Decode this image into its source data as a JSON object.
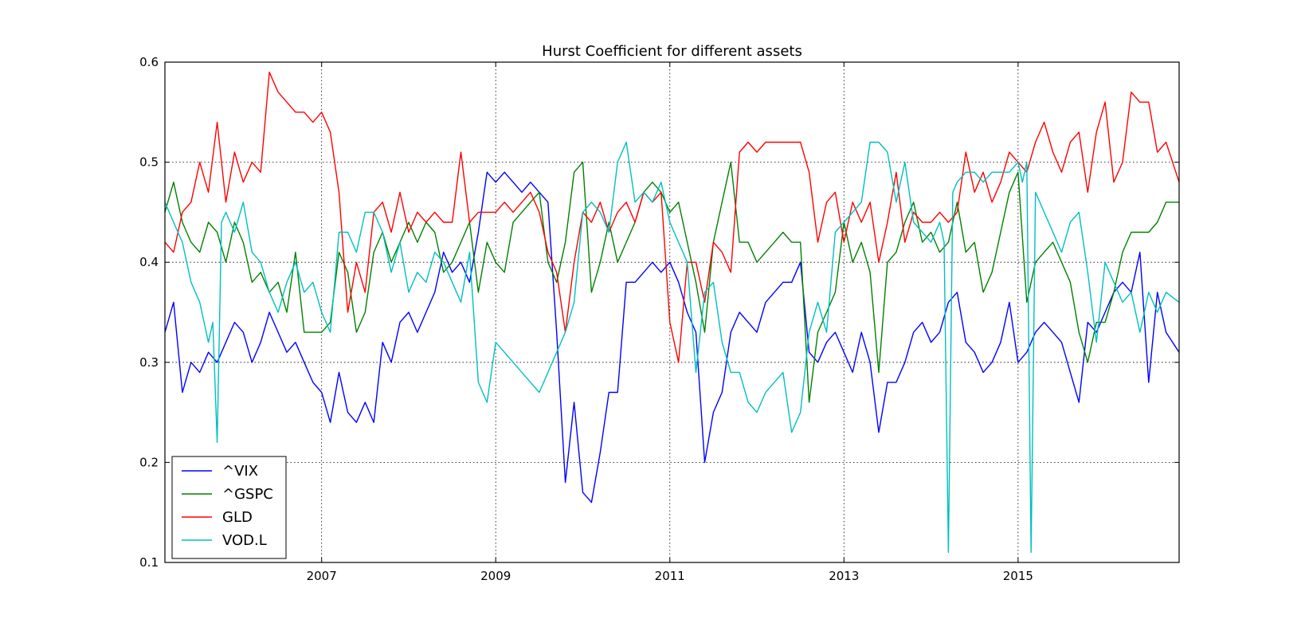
{
  "chart_data": {
    "type": "line",
    "title": "Hurst Coefficient for different assets",
    "xlabel": "",
    "ylabel": "",
    "xlim": [
      2005.2,
      2016.85
    ],
    "ylim": [
      0.1,
      0.6
    ],
    "x_ticks": [
      2007,
      2009,
      2011,
      2013,
      2015
    ],
    "x_tick_labels": [
      "2007",
      "2009",
      "2011",
      "2013",
      "2015"
    ],
    "y_ticks": [
      0.1,
      0.2,
      0.3,
      0.4,
      0.5,
      0.6
    ],
    "y_tick_labels": [
      "0.1",
      "0.2",
      "0.3",
      "0.4",
      "0.5",
      "0.6"
    ],
    "grid": true,
    "legend_position": "lower-left",
    "series": [
      {
        "name": "^VIX",
        "color": "#0000ff",
        "x": [
          2005.2,
          2005.3,
          2005.4,
          2005.5,
          2005.6,
          2005.7,
          2005.8,
          2005.9,
          2006.0,
          2006.1,
          2006.2,
          2006.3,
          2006.4,
          2006.5,
          2006.6,
          2006.7,
          2006.8,
          2006.9,
          2007.0,
          2007.1,
          2007.2,
          2007.3,
          2007.4,
          2007.5,
          2007.6,
          2007.7,
          2007.8,
          2007.9,
          2008.0,
          2008.1,
          2008.2,
          2008.3,
          2008.4,
          2008.5,
          2008.6,
          2008.7,
          2008.8,
          2008.9,
          2009.0,
          2009.1,
          2009.2,
          2009.3,
          2009.4,
          2009.5,
          2009.6,
          2009.7,
          2009.8,
          2009.9,
          2010.0,
          2010.1,
          2010.2,
          2010.3,
          2010.4,
          2010.5,
          2010.6,
          2010.7,
          2010.8,
          2010.9,
          2011.0,
          2011.1,
          2011.2,
          2011.3,
          2011.4,
          2011.5,
          2011.6,
          2011.7,
          2011.8,
          2011.9,
          2012.0,
          2012.1,
          2012.2,
          2012.3,
          2012.4,
          2012.5,
          2012.6,
          2012.7,
          2012.8,
          2012.9,
          2013.0,
          2013.1,
          2013.2,
          2013.3,
          2013.4,
          2013.5,
          2013.6,
          2013.7,
          2013.8,
          2013.9,
          2014.0,
          2014.1,
          2014.2,
          2014.3,
          2014.4,
          2014.5,
          2014.6,
          2014.7,
          2014.8,
          2014.9,
          2015.0,
          2015.1,
          2015.2,
          2015.3,
          2015.4,
          2015.5,
          2015.6,
          2015.7,
          2015.8,
          2015.9,
          2016.0,
          2016.1,
          2016.2,
          2016.3,
          2016.4,
          2016.5,
          2016.6,
          2016.7,
          2016.85
        ],
        "y": [
          0.33,
          0.36,
          0.27,
          0.3,
          0.29,
          0.31,
          0.3,
          0.32,
          0.34,
          0.33,
          0.3,
          0.32,
          0.35,
          0.33,
          0.31,
          0.32,
          0.3,
          0.28,
          0.27,
          0.24,
          0.29,
          0.25,
          0.24,
          0.26,
          0.24,
          0.32,
          0.3,
          0.34,
          0.35,
          0.33,
          0.35,
          0.37,
          0.41,
          0.39,
          0.4,
          0.38,
          0.43,
          0.49,
          0.48,
          0.49,
          0.48,
          0.47,
          0.48,
          0.47,
          0.46,
          0.33,
          0.18,
          0.26,
          0.17,
          0.16,
          0.21,
          0.27,
          0.27,
          0.38,
          0.38,
          0.39,
          0.4,
          0.39,
          0.4,
          0.38,
          0.35,
          0.33,
          0.2,
          0.25,
          0.27,
          0.33,
          0.35,
          0.34,
          0.33,
          0.36,
          0.37,
          0.38,
          0.38,
          0.4,
          0.31,
          0.3,
          0.32,
          0.33,
          0.31,
          0.29,
          0.33,
          0.3,
          0.23,
          0.28,
          0.28,
          0.3,
          0.33,
          0.34,
          0.32,
          0.33,
          0.36,
          0.37,
          0.32,
          0.31,
          0.29,
          0.3,
          0.32,
          0.36,
          0.3,
          0.31,
          0.33,
          0.34,
          0.33,
          0.32,
          0.29,
          0.26,
          0.34,
          0.33,
          0.35,
          0.37,
          0.38,
          0.37,
          0.41,
          0.28,
          0.37,
          0.33,
          0.31
        ]
      },
      {
        "name": "^GSPC",
        "color": "#008000",
        "x": [
          2005.2,
          2005.3,
          2005.4,
          2005.5,
          2005.6,
          2005.7,
          2005.8,
          2005.9,
          2006.0,
          2006.1,
          2006.2,
          2006.3,
          2006.4,
          2006.5,
          2006.6,
          2006.7,
          2006.8,
          2006.9,
          2007.0,
          2007.1,
          2007.2,
          2007.3,
          2007.4,
          2007.5,
          2007.6,
          2007.7,
          2007.8,
          2007.9,
          2008.0,
          2008.1,
          2008.2,
          2008.3,
          2008.4,
          2008.5,
          2008.6,
          2008.7,
          2008.8,
          2008.9,
          2009.0,
          2009.1,
          2009.2,
          2009.3,
          2009.4,
          2009.5,
          2009.6,
          2009.7,
          2009.8,
          2009.9,
          2010.0,
          2010.1,
          2010.2,
          2010.3,
          2010.4,
          2010.5,
          2010.6,
          2010.7,
          2010.8,
          2010.9,
          2011.0,
          2011.1,
          2011.2,
          2011.3,
          2011.4,
          2011.5,
          2011.6,
          2011.7,
          2011.8,
          2011.9,
          2012.0,
          2012.1,
          2012.2,
          2012.3,
          2012.4,
          2012.5,
          2012.6,
          2012.7,
          2012.8,
          2012.9,
          2013.0,
          2013.1,
          2013.2,
          2013.3,
          2013.4,
          2013.5,
          2013.6,
          2013.7,
          2013.8,
          2013.9,
          2014.0,
          2014.1,
          2014.2,
          2014.3,
          2014.4,
          2014.5,
          2014.6,
          2014.7,
          2014.8,
          2014.9,
          2015.0,
          2015.1,
          2015.2,
          2015.3,
          2015.4,
          2015.5,
          2015.6,
          2015.7,
          2015.8,
          2015.9,
          2016.0,
          2016.1,
          2016.2,
          2016.3,
          2016.4,
          2016.5,
          2016.6,
          2016.7,
          2016.85
        ],
        "y": [
          0.45,
          0.48,
          0.44,
          0.42,
          0.41,
          0.44,
          0.43,
          0.4,
          0.44,
          0.42,
          0.38,
          0.39,
          0.37,
          0.38,
          0.35,
          0.41,
          0.33,
          0.33,
          0.33,
          0.34,
          0.41,
          0.39,
          0.33,
          0.35,
          0.41,
          0.43,
          0.4,
          0.42,
          0.44,
          0.42,
          0.44,
          0.43,
          0.39,
          0.4,
          0.42,
          0.44,
          0.37,
          0.42,
          0.4,
          0.39,
          0.44,
          0.45,
          0.46,
          0.47,
          0.4,
          0.38,
          0.42,
          0.49,
          0.5,
          0.37,
          0.4,
          0.44,
          0.4,
          0.42,
          0.44,
          0.47,
          0.48,
          0.47,
          0.45,
          0.46,
          0.42,
          0.38,
          0.33,
          0.42,
          0.46,
          0.5,
          0.42,
          0.42,
          0.4,
          0.41,
          0.42,
          0.43,
          0.42,
          0.42,
          0.26,
          0.33,
          0.35,
          0.37,
          0.44,
          0.4,
          0.42,
          0.39,
          0.29,
          0.4,
          0.41,
          0.44,
          0.46,
          0.42,
          0.43,
          0.41,
          0.42,
          0.46,
          0.41,
          0.42,
          0.37,
          0.39,
          0.43,
          0.47,
          0.49,
          0.36,
          0.4,
          0.41,
          0.42,
          0.4,
          0.38,
          0.33,
          0.3,
          0.34,
          0.34,
          0.37,
          0.41,
          0.43,
          0.43,
          0.43,
          0.44,
          0.46,
          0.46
        ]
      },
      {
        "name": "GLD",
        "color": "#ff0000",
        "x": [
          2005.2,
          2005.3,
          2005.4,
          2005.5,
          2005.6,
          2005.7,
          2005.8,
          2005.9,
          2006.0,
          2006.1,
          2006.2,
          2006.3,
          2006.4,
          2006.5,
          2006.6,
          2006.7,
          2006.8,
          2006.9,
          2007.0,
          2007.1,
          2007.2,
          2007.3,
          2007.4,
          2007.5,
          2007.6,
          2007.7,
          2007.8,
          2007.9,
          2008.0,
          2008.1,
          2008.2,
          2008.3,
          2008.4,
          2008.5,
          2008.6,
          2008.7,
          2008.8,
          2008.9,
          2009.0,
          2009.1,
          2009.2,
          2009.3,
          2009.4,
          2009.5,
          2009.6,
          2009.7,
          2009.8,
          2009.9,
          2010.0,
          2010.1,
          2010.2,
          2010.3,
          2010.4,
          2010.5,
          2010.6,
          2010.7,
          2010.8,
          2010.9,
          2011.0,
          2011.1,
          2011.2,
          2011.3,
          2011.4,
          2011.5,
          2011.6,
          2011.7,
          2011.8,
          2011.9,
          2012.0,
          2012.1,
          2012.2,
          2012.3,
          2012.4,
          2012.5,
          2012.6,
          2012.7,
          2012.8,
          2012.9,
          2013.0,
          2013.1,
          2013.2,
          2013.3,
          2013.4,
          2013.5,
          2013.6,
          2013.7,
          2013.8,
          2013.9,
          2014.0,
          2014.1,
          2014.2,
          2014.3,
          2014.4,
          2014.5,
          2014.6,
          2014.7,
          2014.8,
          2014.9,
          2015.0,
          2015.1,
          2015.2,
          2015.3,
          2015.4,
          2015.5,
          2015.6,
          2015.7,
          2015.8,
          2015.9,
          2016.0,
          2016.1,
          2016.2,
          2016.3,
          2016.4,
          2016.5,
          2016.6,
          2016.7,
          2016.85
        ],
        "y": [
          0.42,
          0.41,
          0.45,
          0.46,
          0.5,
          0.47,
          0.54,
          0.46,
          0.51,
          0.48,
          0.5,
          0.49,
          0.59,
          0.57,
          0.56,
          0.55,
          0.55,
          0.54,
          0.55,
          0.53,
          0.47,
          0.35,
          0.4,
          0.37,
          0.45,
          0.46,
          0.43,
          0.47,
          0.43,
          0.45,
          0.44,
          0.45,
          0.44,
          0.44,
          0.51,
          0.44,
          0.45,
          0.45,
          0.45,
          0.46,
          0.45,
          0.46,
          0.47,
          0.45,
          0.41,
          0.39,
          0.33,
          0.4,
          0.45,
          0.44,
          0.46,
          0.43,
          0.45,
          0.46,
          0.44,
          0.47,
          0.46,
          0.47,
          0.34,
          0.3,
          0.4,
          0.4,
          0.36,
          0.42,
          0.41,
          0.39,
          0.51,
          0.52,
          0.51,
          0.52,
          0.52,
          0.52,
          0.52,
          0.52,
          0.49,
          0.42,
          0.46,
          0.47,
          0.42,
          0.46,
          0.44,
          0.46,
          0.4,
          0.44,
          0.49,
          0.42,
          0.45,
          0.44,
          0.44,
          0.45,
          0.44,
          0.45,
          0.51,
          0.47,
          0.49,
          0.46,
          0.48,
          0.51,
          0.5,
          0.49,
          0.52,
          0.54,
          0.51,
          0.49,
          0.52,
          0.53,
          0.47,
          0.53,
          0.56,
          0.48,
          0.5,
          0.57,
          0.56,
          0.56,
          0.51,
          0.52,
          0.48
        ]
      },
      {
        "name": "VOD.L",
        "color": "#00bfbf",
        "x": [
          2005.2,
          2005.3,
          2005.4,
          2005.5,
          2005.6,
          2005.7,
          2005.75,
          2005.8,
          2005.85,
          2005.9,
          2006.0,
          2006.1,
          2006.2,
          2006.3,
          2006.4,
          2006.5,
          2006.6,
          2006.7,
          2006.8,
          2006.9,
          2007.0,
          2007.1,
          2007.2,
          2007.3,
          2007.4,
          2007.5,
          2007.6,
          2007.7,
          2007.8,
          2007.9,
          2008.0,
          2008.1,
          2008.2,
          2008.3,
          2008.4,
          2008.5,
          2008.6,
          2008.7,
          2008.8,
          2008.9,
          2009.0,
          2009.1,
          2009.2,
          2009.3,
          2009.4,
          2009.5,
          2009.6,
          2009.7,
          2009.8,
          2009.9,
          2010.0,
          2010.1,
          2010.2,
          2010.3,
          2010.4,
          2010.5,
          2010.6,
          2010.7,
          2010.8,
          2010.9,
          2011.0,
          2011.1,
          2011.2,
          2011.3,
          2011.4,
          2011.5,
          2011.6,
          2011.7,
          2011.8,
          2011.9,
          2012.0,
          2012.1,
          2012.2,
          2012.3,
          2012.4,
          2012.5,
          2012.6,
          2012.7,
          2012.8,
          2012.9,
          2013.0,
          2013.1,
          2013.2,
          2013.3,
          2013.4,
          2013.5,
          2013.6,
          2013.7,
          2013.8,
          2013.9,
          2014.0,
          2014.1,
          2014.15,
          2014.2,
          2014.25,
          2014.3,
          2014.4,
          2014.5,
          2014.6,
          2014.7,
          2014.8,
          2014.9,
          2015.0,
          2015.05,
          2015.1,
          2015.15,
          2015.2,
          2015.3,
          2015.4,
          2015.5,
          2015.6,
          2015.7,
          2015.8,
          2015.9,
          2016.0,
          2016.1,
          2016.2,
          2016.3,
          2016.4,
          2016.5,
          2016.6,
          2016.7,
          2016.85
        ],
        "y": [
          0.46,
          0.44,
          0.42,
          0.38,
          0.36,
          0.32,
          0.34,
          0.22,
          0.44,
          0.45,
          0.43,
          0.46,
          0.41,
          0.4,
          0.37,
          0.35,
          0.38,
          0.4,
          0.37,
          0.38,
          0.35,
          0.33,
          0.43,
          0.43,
          0.41,
          0.45,
          0.45,
          0.43,
          0.39,
          0.42,
          0.37,
          0.39,
          0.38,
          0.41,
          0.4,
          0.38,
          0.36,
          0.41,
          0.28,
          0.26,
          0.32,
          0.31,
          0.3,
          0.29,
          0.28,
          0.27,
          0.29,
          0.31,
          0.33,
          0.36,
          0.45,
          0.46,
          0.45,
          0.43,
          0.5,
          0.52,
          0.46,
          0.47,
          0.46,
          0.48,
          0.44,
          0.42,
          0.4,
          0.29,
          0.37,
          0.38,
          0.32,
          0.29,
          0.29,
          0.26,
          0.25,
          0.27,
          0.28,
          0.29,
          0.23,
          0.25,
          0.33,
          0.36,
          0.33,
          0.43,
          0.44,
          0.45,
          0.46,
          0.52,
          0.52,
          0.51,
          0.46,
          0.5,
          0.44,
          0.43,
          0.42,
          0.44,
          0.42,
          0.11,
          0.47,
          0.48,
          0.49,
          0.49,
          0.48,
          0.49,
          0.49,
          0.49,
          0.5,
          0.48,
          0.5,
          0.11,
          0.47,
          0.45,
          0.43,
          0.41,
          0.44,
          0.45,
          0.39,
          0.32,
          0.4,
          0.38,
          0.36,
          0.37,
          0.33,
          0.37,
          0.35,
          0.37,
          0.36
        ]
      }
    ]
  }
}
